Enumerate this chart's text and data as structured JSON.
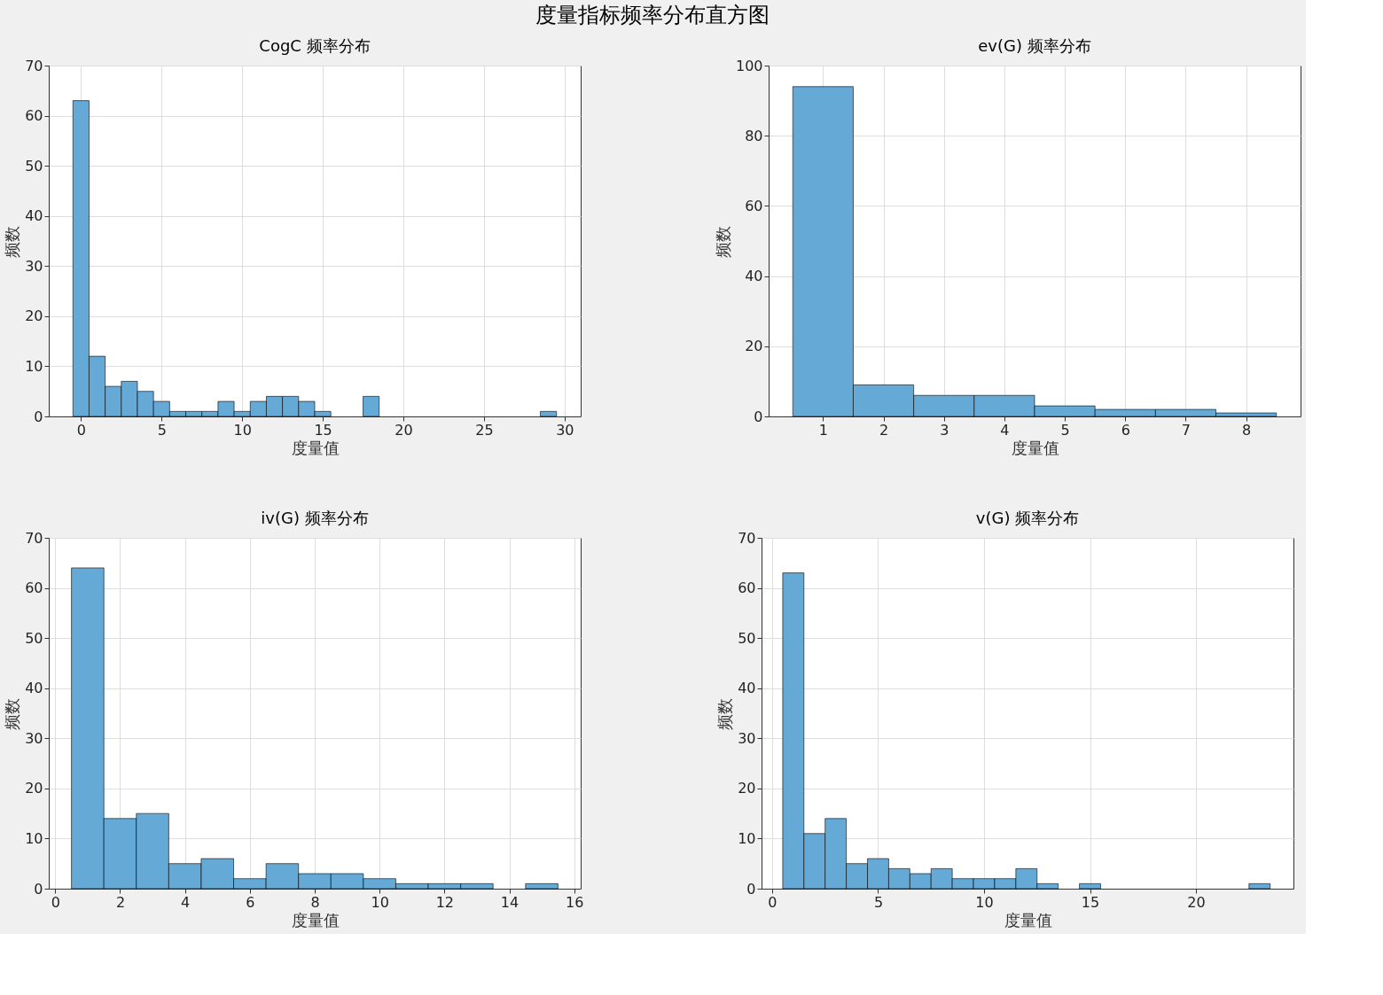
{
  "chart_data": [
    {
      "type": "other",
      "title": "度量指标频率分布直方图"
    },
    {
      "type": "histogram",
      "title": "CogC 频率分布",
      "xlabel": "度量值",
      "ylabel": "频数",
      "color": "#65a9d7",
      "grid": true,
      "bins": [
        -0.5,
        0.5,
        1.5,
        2.5,
        3.5,
        4.5,
        5.5,
        6.5,
        7.5,
        8.5,
        9.5,
        10.5,
        11.5,
        12.5,
        13.5,
        14.5,
        15.5,
        16.5,
        17.5,
        18.5,
        19.5,
        20.5,
        21.5,
        22.5,
        23.5,
        24.5,
        25.5,
        26.5,
        27.5,
        28.5,
        29.5
      ],
      "values": [
        63,
        12,
        6,
        7,
        5,
        3,
        1,
        1,
        1,
        3,
        1,
        3,
        4,
        4,
        3,
        1,
        0,
        0,
        4,
        0,
        0,
        0,
        0,
        0,
        0,
        0,
        0,
        0,
        0,
        1
      ],
      "xlim": [
        -2,
        31
      ],
      "xticks": [
        0,
        5,
        10,
        15,
        20,
        25,
        30
      ],
      "ylim": [
        0,
        70
      ],
      "yticks": [
        0,
        10,
        20,
        30,
        40,
        50,
        60,
        70
      ]
    },
    {
      "type": "histogram",
      "title": "ev(G) 频率分布",
      "xlabel": "度量值",
      "ylabel": "频数",
      "color": "#65a9d7",
      "grid": true,
      "bins": [
        0.5,
        1.5,
        2.5,
        3.5,
        4.5,
        5.5,
        6.5,
        7.5,
        8.5
      ],
      "values": [
        94,
        9,
        6,
        6,
        3,
        2,
        2,
        1
      ],
      "xlim": [
        0.1,
        8.9
      ],
      "xticks": [
        1,
        2,
        3,
        4,
        5,
        6,
        7,
        8
      ],
      "ylim": [
        0,
        100
      ],
      "yticks": [
        0,
        20,
        40,
        60,
        80,
        100
      ]
    },
    {
      "type": "histogram",
      "title": "iv(G) 频率分布",
      "xlabel": "度量值",
      "ylabel": "频数",
      "color": "#65a9d7",
      "grid": true,
      "bins": [
        0.5,
        1.5,
        2.5,
        3.5,
        4.5,
        5.5,
        6.5,
        7.5,
        8.5,
        9.5,
        10.5,
        11.5,
        12.5,
        13.5,
        14.5,
        15.5
      ],
      "values": [
        64,
        14,
        15,
        5,
        6,
        2,
        5,
        3,
        3,
        2,
        1,
        1,
        1,
        0,
        1
      ],
      "xlim": [
        -0.2,
        16.2
      ],
      "xticks": [
        0,
        2,
        4,
        6,
        8,
        10,
        12,
        14,
        16
      ],
      "ylim": [
        0,
        70
      ],
      "yticks": [
        0,
        10,
        20,
        30,
        40,
        50,
        60,
        70
      ]
    },
    {
      "type": "histogram",
      "title": "v(G) 频率分布",
      "xlabel": "度量值",
      "ylabel": "频数",
      "color": "#65a9d7",
      "grid": true,
      "bins": [
        0.5,
        1.5,
        2.5,
        3.5,
        4.5,
        5.5,
        6.5,
        7.5,
        8.5,
        9.5,
        10.5,
        11.5,
        12.5,
        13.5,
        14.5,
        15.5,
        16.5,
        17.5,
        18.5,
        19.5,
        20.5,
        21.5,
        22.5,
        23.5
      ],
      "values": [
        63,
        11,
        14,
        5,
        6,
        4,
        3,
        4,
        2,
        2,
        2,
        4,
        1,
        0,
        1,
        0,
        0,
        0,
        0,
        0,
        0,
        0,
        1
      ],
      "xlim": [
        -0.5,
        24.6
      ],
      "xticks": [
        0,
        5,
        10,
        15,
        20
      ],
      "ylim": [
        0,
        70
      ],
      "yticks": [
        0,
        10,
        20,
        30,
        40,
        50,
        60,
        70
      ]
    }
  ]
}
